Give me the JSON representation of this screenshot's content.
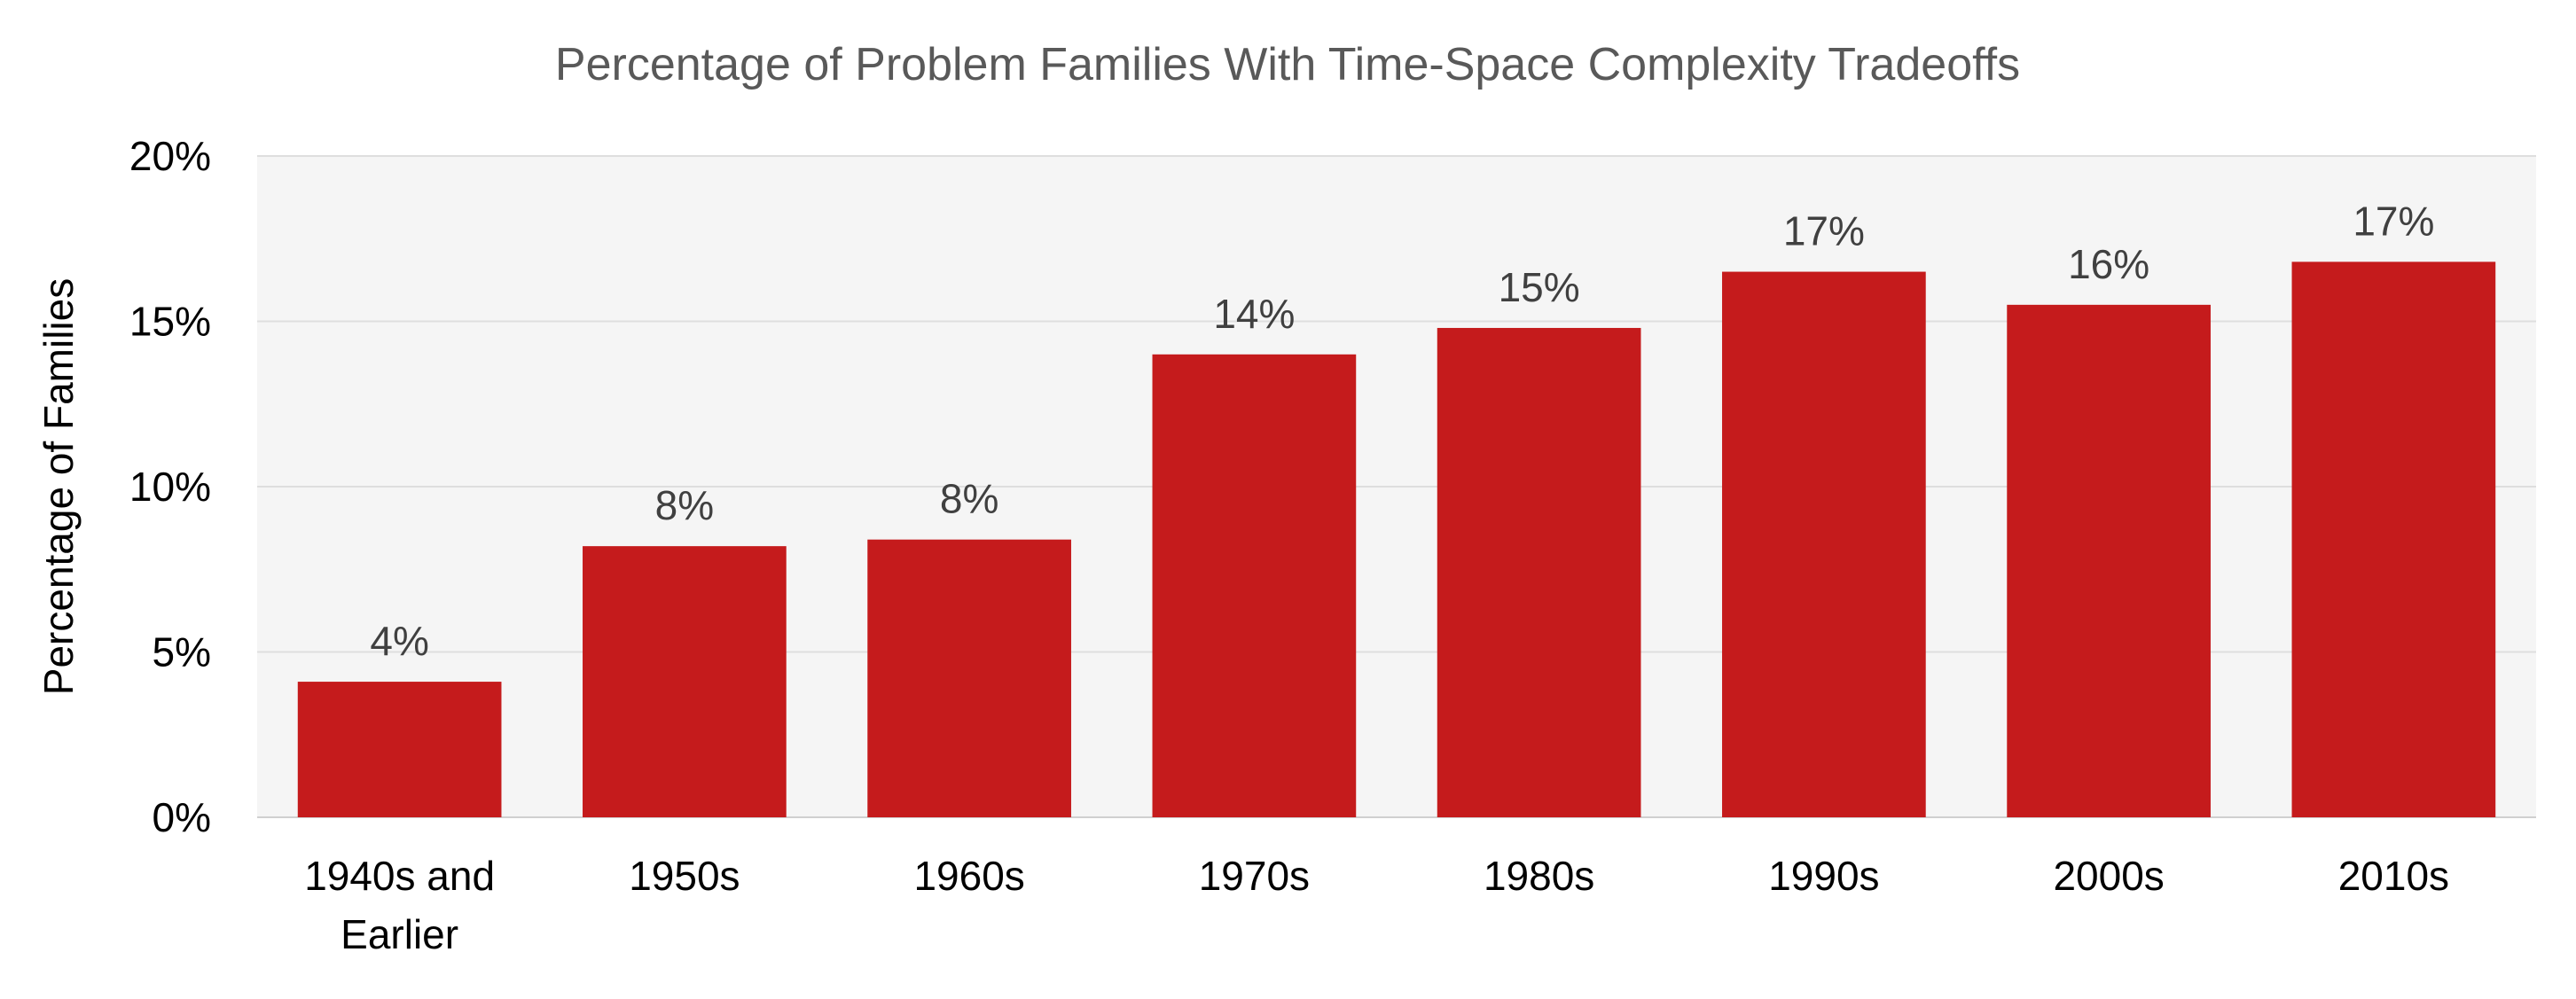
{
  "chart_data": {
    "type": "bar",
    "title": "Percentage of Problem Families With Time-Space Complexity Tradeoffs",
    "xlabel": "",
    "ylabel": "Percentage of Families",
    "categories": [
      [
        "1940s and",
        "Earlier"
      ],
      [
        "1950s"
      ],
      [
        "1960s"
      ],
      [
        "1970s"
      ],
      [
        "1980s"
      ],
      [
        "1990s"
      ],
      [
        "2000s"
      ],
      [
        "2010s"
      ]
    ],
    "values": [
      4.1,
      8.2,
      8.4,
      14.0,
      14.8,
      16.5,
      15.5,
      16.8
    ],
    "data_labels": [
      "4%",
      "8%",
      "8%",
      "14%",
      "15%",
      "17%",
      "16%",
      "17%"
    ],
    "ylim": [
      0,
      20
    ],
    "yticks": [
      0,
      5,
      10,
      15,
      20
    ],
    "ytick_labels": [
      "0%",
      "5%",
      "10%",
      "15%",
      "20%"
    ],
    "grid": true,
    "bar_color": "#C51B1C",
    "plot_background": "#F5F5F5",
    "gridline_color": "#DEDEDE",
    "title_color": "#595959",
    "data_label_color": "#404040",
    "text_color": "#000000"
  }
}
